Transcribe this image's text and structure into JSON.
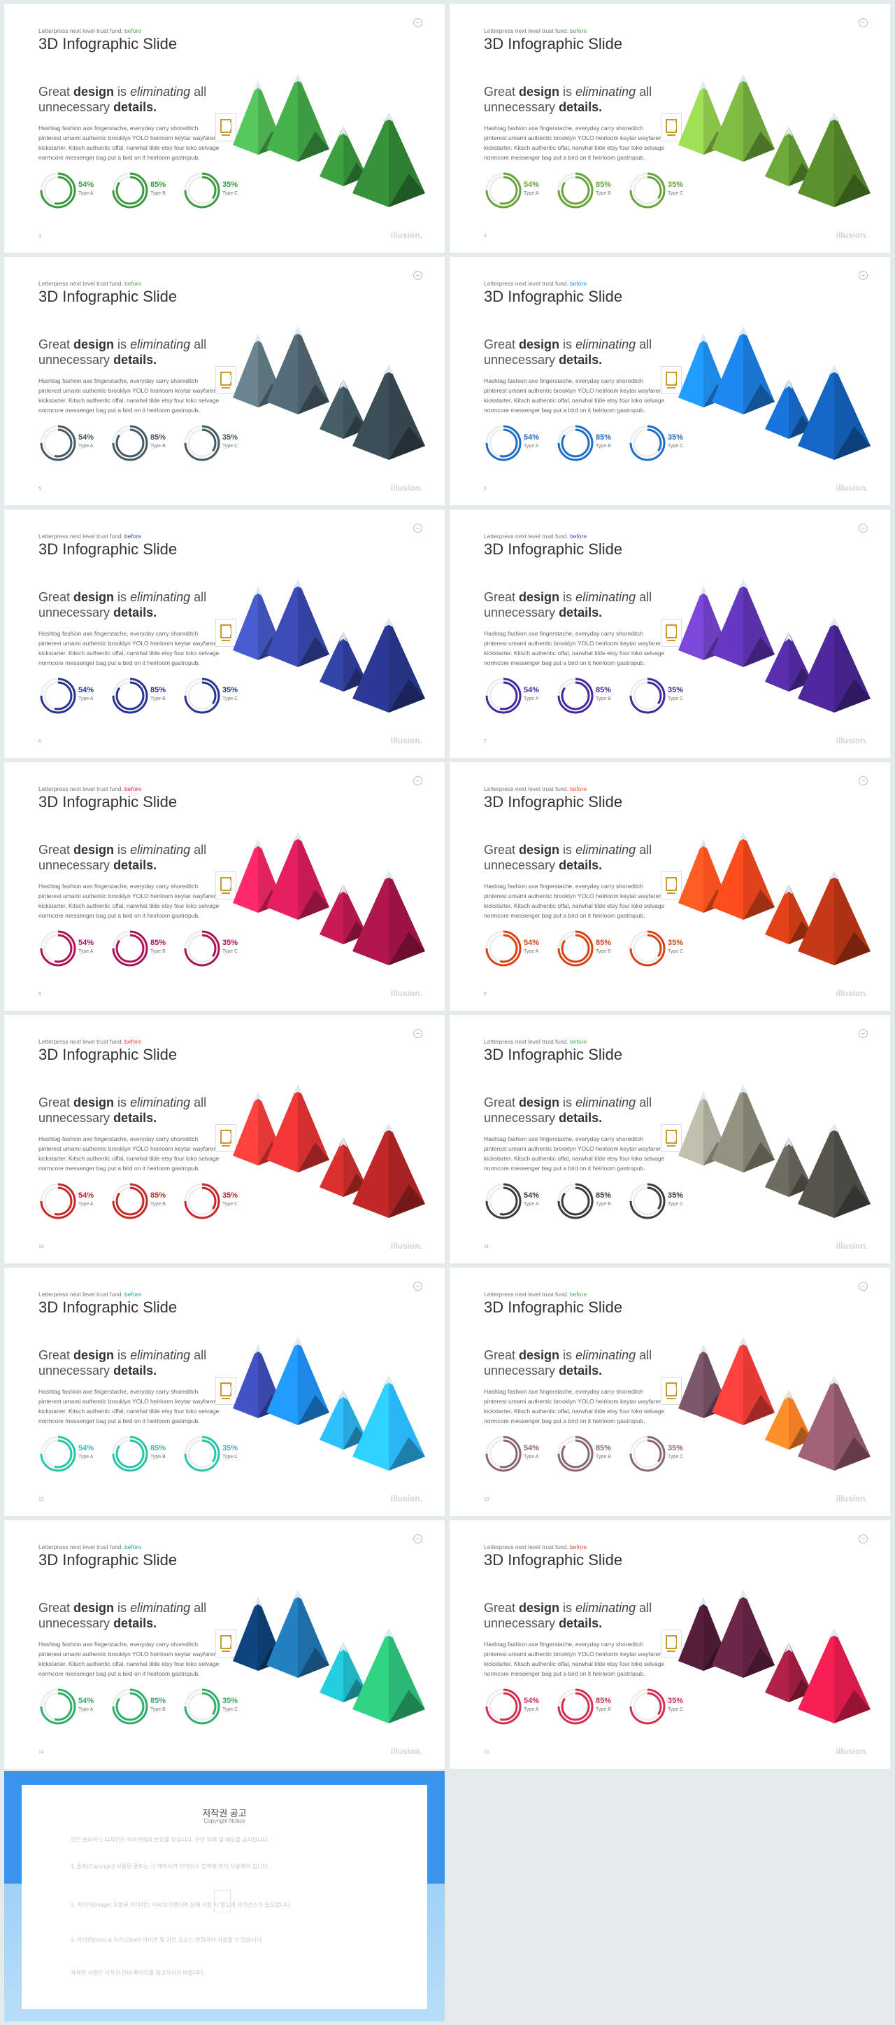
{
  "slide_common": {
    "kicker": "Letterpress next level trust fund.",
    "kicker_word": "before",
    "title": "3D Infographic Slide",
    "headline_pre": "Great ",
    "headline_b1": "design",
    "headline_mid": " is ",
    "headline_i": "eliminating",
    "headline_post": " all",
    "headline_line2_pre": "unnecessary ",
    "headline_b2": "details.",
    "body": "Hashtag fashion axe fingerstache, everyday carry shoreditch pinterest umami authentic brooklyn YOLO heirloom keytar wayfarer kickstarter. Kitsch authentic offal, narwhal tilde etsy four loko selvage normcore messenger bag put a bird on it heirloom gastropub.",
    "brand": "illusion.",
    "percents": [
      {
        "value": "54%",
        "label": "Type A",
        "fraction": 0.54
      },
      {
        "value": "85%",
        "label": "Type B",
        "fraction": 0.85
      },
      {
        "value": "35%",
        "label": "Type C",
        "fraction": 0.35
      }
    ]
  },
  "slides": [
    {
      "page": "3",
      "accent": "#3a9b3f",
      "kicker_color": "#4caf50",
      "mountains": [
        "#4caf50",
        "#3d9b41",
        "#358c38",
        "#2f7f33"
      ]
    },
    {
      "page": "4",
      "accent": "#6aa33a",
      "kicker_color": "#4caf50",
      "mountains": [
        "#8bc34a",
        "#6ea53a",
        "#5f9431",
        "#4f7f28"
      ]
    },
    {
      "page": "5",
      "accent": "#455a64",
      "kicker_color": "#4caf50",
      "mountains": [
        "#5d737e",
        "#4a5f69",
        "#3e525b",
        "#34454d"
      ]
    },
    {
      "page": "6",
      "accent": "#1e6fc8",
      "kicker_color": "#2196f3",
      "mountains": [
        "#1e88e5",
        "#1976d2",
        "#1565c0",
        "#125aab"
      ]
    },
    {
      "page": "6",
      "accent": "#283593",
      "kicker_color": "#3f51b5",
      "mountains": [
        "#3f51b5",
        "#3442a0",
        "#2c3a90",
        "#263282"
      ]
    },
    {
      "page": "7",
      "accent": "#4527a0",
      "kicker_color": "#673ab7",
      "mountains": [
        "#6b3fbf",
        "#5a31a8",
        "#4e2998",
        "#442388"
      ]
    },
    {
      "page": "8",
      "accent": "#ad1457",
      "kicker_color": "#e91e63",
      "mountains": [
        "#e0245e",
        "#c81b54",
        "#b0174b",
        "#9a1342"
      ]
    },
    {
      "page": "9",
      "accent": "#d84315",
      "kicker_color": "#ff5722",
      "mountains": [
        "#f4511e",
        "#e0431a",
        "#c63a16",
        "#ad3213"
      ]
    },
    {
      "page": "10",
      "accent": "#c62828",
      "kicker_color": "#f44336",
      "mountains": [
        "#e53935",
        "#d32f2f",
        "#bf2a2a",
        "#a82424"
      ]
    },
    {
      "page": "11",
      "accent": "#3c3c3c",
      "kicker_color": "#4caf50",
      "mountains": [
        "#a8a898",
        "#808070",
        "#5f5f55",
        "#4a4a44"
      ]
    },
    {
      "page": "12",
      "accent": "#26c6a6",
      "kicker_color": "#26a69a",
      "mountains": [
        "#3949ab",
        "#1e88e5",
        "#29a8e0",
        "#29b6f6"
      ]
    },
    {
      "page": "13",
      "accent": "#8a6674",
      "kicker_color": "#4caf50",
      "mountains": [
        "#6d4c5e",
        "#e53935",
        "#ef7d22",
        "#8d5568"
      ]
    },
    {
      "page": "14",
      "accent": "#2eaf6a",
      "kicker_color": "#26a69a",
      "mountains": [
        "#0d3c6e",
        "#1e6fa8",
        "#1fb3c4",
        "#2ab872"
      ]
    },
    {
      "page": "15",
      "accent": "#d32f50",
      "kicker_color": "#f44336",
      "mountains": [
        "#4a1a33",
        "#5e2140",
        "#9a1d3f",
        "#d81b4a"
      ]
    }
  ],
  "copyright": {
    "title": "저작권 공고",
    "subtitle": "Copyright Notice",
    "paragraphs": [
      "모든 슬라이드 디자인은 저작권법의 보호를 받습니다. 무단 복제 및 배포를 금지합니다.",
      "1. 폰트(Copyright) 사용된 폰트는 각 제작사의 라이선스 정책에 따라 사용해야 합니다.",
      "2. 이미지(Image) 포함된 이미지는 미리보기용이며 실제 사용 시 별도의 라이선스가 필요합니다.",
      "3. 아이콘(Icon) & 차트(Chart) 아이콘 및 차트 요소는 편집하여 사용할 수 있습니다.",
      "자세한 사항은 저작권 안내 페이지를 참고하시기 바랍니다."
    ]
  }
}
